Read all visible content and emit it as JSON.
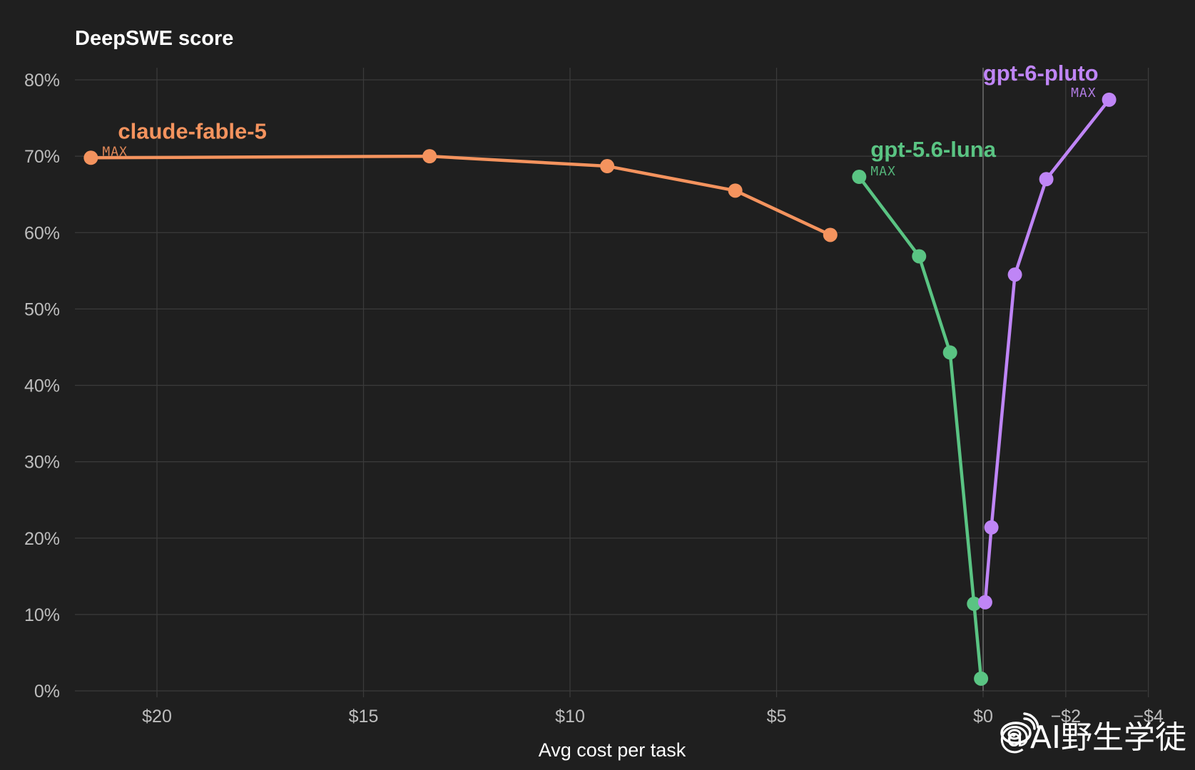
{
  "chart_data": {
    "type": "line",
    "title": "DeepSWE score",
    "xlabel": "Avg cost per task",
    "ylabel": "",
    "x_axis": {
      "reversed": true,
      "xlim": [
        22,
        -4
      ],
      "ticks": [
        20,
        15,
        10,
        5,
        0,
        -2,
        -4
      ],
      "tick_labels": [
        "$20",
        "$15",
        "$10",
        "$5",
        "$0",
        "−$2",
        "−$4"
      ]
    },
    "y_axis": {
      "ylim": [
        0,
        80
      ],
      "ticks": [
        0,
        10,
        20,
        30,
        40,
        50,
        60,
        70,
        80
      ],
      "tick_labels": [
        "0%",
        "10%",
        "20%",
        "30%",
        "40%",
        "50%",
        "60%",
        "70%",
        "80%"
      ]
    },
    "grid": true,
    "series": [
      {
        "name": "claude-fable-5",
        "tag": "MAX",
        "color": "#f4935e",
        "points": [
          {
            "x": 21.6,
            "y": 69.8
          },
          {
            "x": 13.4,
            "y": 70.0
          },
          {
            "x": 9.1,
            "y": 68.7
          },
          {
            "x": 6.0,
            "y": 65.5
          },
          {
            "x": 3.7,
            "y": 59.7
          }
        ]
      },
      {
        "name": "gpt-5.6-luna",
        "tag": "MAX",
        "color": "#5ac483",
        "points": [
          {
            "x": 3.0,
            "y": 67.3
          },
          {
            "x": 1.55,
            "y": 56.9
          },
          {
            "x": 0.8,
            "y": 44.3
          },
          {
            "x": 0.22,
            "y": 11.4
          },
          {
            "x": 0.05,
            "y": 1.6
          }
        ]
      },
      {
        "name": "gpt-6-pluto",
        "tag": "MAX",
        "color": "#bf85f6",
        "points": [
          {
            "x": -0.05,
            "y": 11.6
          },
          {
            "x": -0.2,
            "y": 21.4
          },
          {
            "x": -0.77,
            "y": 54.5
          },
          {
            "x": -1.53,
            "y": 67.0
          },
          {
            "x": -3.05,
            "y": 77.4
          }
        ]
      }
    ]
  },
  "watermark": {
    "icon": "weibo-icon",
    "text": "@AI野生学徒"
  }
}
